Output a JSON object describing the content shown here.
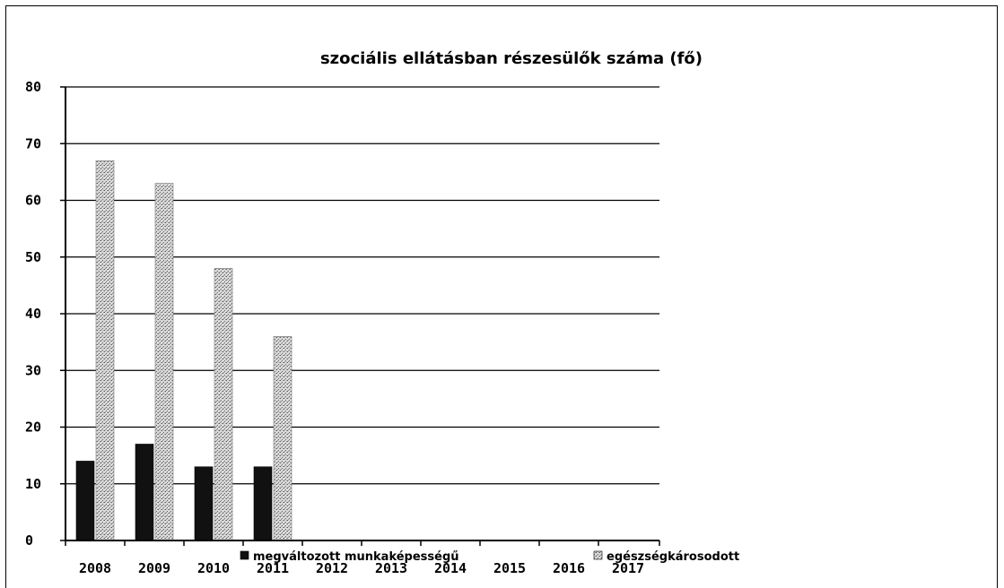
{
  "chart_data": {
    "type": "bar",
    "title": "szociális ellátásban részesülők száma (fő)",
    "categories": [
      "2008",
      "2009",
      "2010",
      "2011",
      "2012",
      "2013",
      "2014",
      "2015",
      "2016",
      "2017"
    ],
    "series": [
      {
        "name": "megváltozott munkaképességű",
        "values": [
          14,
          17,
          13,
          13,
          null,
          null,
          null,
          null,
          null,
          null
        ],
        "color": "#111111"
      },
      {
        "name": "egészségkárosodott",
        "values": [
          67,
          63,
          48,
          36,
          null,
          null,
          null,
          null,
          null,
          null
        ],
        "color": "#b8b8b8"
      }
    ],
    "ylim": [
      0,
      80
    ],
    "yticks": [
      "0",
      "10",
      "20",
      "30",
      "40",
      "50",
      "60",
      "70",
      "80"
    ],
    "grid": true,
    "legend": "bottom"
  }
}
